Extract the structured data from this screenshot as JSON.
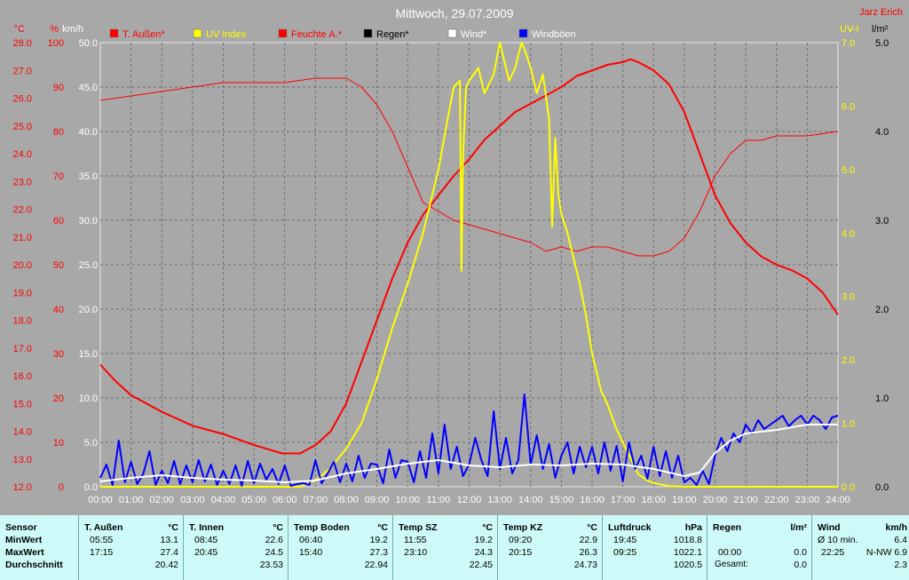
{
  "title": "Mittwoch, 29.07.2009",
  "author": "Jarz Erich",
  "left_axes": {
    "celsius": {
      "unit": "°C",
      "ticks": [
        "28.0",
        "27.0",
        "26.0",
        "25.0",
        "24.0",
        "23.0",
        "22.0",
        "21.0",
        "20.0",
        "19.0",
        "18.0",
        "17.0",
        "16.0",
        "15.0",
        "14.0",
        "13.0",
        "12.0"
      ]
    },
    "percent": {
      "unit": "%",
      "ticks": [
        "100",
        "90",
        "80",
        "70",
        "60",
        "50",
        "40",
        "30",
        "20",
        "10",
        "0"
      ]
    },
    "kmh": {
      "unit": "km/h",
      "ticks": [
        "50.0",
        "45.0",
        "40.0",
        "35.0",
        "30.0",
        "25.0",
        "20.0",
        "15.0",
        "10.0",
        "5.0",
        "0.0"
      ]
    }
  },
  "right_axes": {
    "uvi": {
      "unit": "UV-I",
      "ticks": [
        "7.0",
        "6.0",
        "5.0",
        "4.0",
        "3.0",
        "2.0",
        "1.0",
        "0.0"
      ]
    },
    "rain": {
      "unit": "l/m²",
      "ticks": [
        "5.0",
        "4.0",
        "3.0",
        "2.0",
        "1.0",
        "0.0"
      ]
    }
  },
  "x_ticks": [
    "00:00",
    "01:00",
    "02:00",
    "03:00",
    "04:00",
    "05:00",
    "06:00",
    "07:00",
    "08:00",
    "09:00",
    "10:00",
    "11:00",
    "12:00",
    "13:00",
    "14:00",
    "15:00",
    "16:00",
    "17:00",
    "18:00",
    "19:00",
    "20:00",
    "21:00",
    "22:00",
    "23:00",
    "24:00"
  ],
  "legend": [
    {
      "label": "T. Außen*",
      "color": "#ff0000",
      "swatch": "#ff0000"
    },
    {
      "label": "UV Index",
      "color": "#ffff00",
      "swatch": "#ffff00"
    },
    {
      "label": "Feuchte A.*",
      "color": "#ff0000",
      "swatch": "#ff0000"
    },
    {
      "label": "Regen*",
      "color": "#000000",
      "swatch": "#000000"
    },
    {
      "label": "Wind*",
      "color": "#ffffff",
      "swatch": "#ffffff"
    },
    {
      "label": "Windböen",
      "color": "#ffffff",
      "swatch": "#0000ff"
    }
  ],
  "chart_data": {
    "type": "line",
    "title": "Mittwoch, 29.07.2009",
    "x_unit": "hour",
    "xlim": [
      0,
      24
    ],
    "series": [
      {
        "name": "T. Außen*",
        "axis": "celsius",
        "ylim": [
          12,
          28
        ],
        "color": "#ff0000",
        "x": [
          0,
          0.5,
          1,
          1.5,
          2,
          3,
          4,
          5,
          5.92,
          6.5,
          7,
          7.5,
          8,
          8.5,
          9,
          9.5,
          10,
          10.5,
          11,
          11.5,
          12,
          12.5,
          13,
          13.5,
          14,
          14.5,
          15,
          15.5,
          16,
          16.5,
          17,
          17.25,
          17.5,
          18,
          18.5,
          19,
          19.5,
          20,
          20.5,
          21,
          21.5,
          22,
          22.5,
          23,
          23.5,
          24
        ],
        "values": [
          16.4,
          15.8,
          15.3,
          15.0,
          14.7,
          14.2,
          13.9,
          13.5,
          13.2,
          13.2,
          13.5,
          14.0,
          15.0,
          16.5,
          18.0,
          19.5,
          20.8,
          21.8,
          22.5,
          23.2,
          23.8,
          24.5,
          25.0,
          25.5,
          25.8,
          26.1,
          26.4,
          26.8,
          27.0,
          27.2,
          27.3,
          27.4,
          27.3,
          27.0,
          26.5,
          25.5,
          24.0,
          22.5,
          21.5,
          20.8,
          20.3,
          20.0,
          19.8,
          19.5,
          19.0,
          18.2
        ]
      },
      {
        "name": "Feuchte A.*",
        "axis": "percent",
        "ylim": [
          0,
          100
        ],
        "color": "#ff0000",
        "x": [
          0,
          1,
          2,
          3,
          4,
          5,
          6,
          7,
          8,
          8.5,
          9,
          9.5,
          10,
          10.5,
          11,
          11.5,
          12,
          12.5,
          13,
          13.5,
          14,
          14.5,
          15,
          15.5,
          16,
          16.5,
          17,
          17.5,
          18,
          18.5,
          19,
          19.5,
          20,
          20.5,
          21,
          21.5,
          22,
          23,
          24
        ],
        "values": [
          87,
          88,
          89,
          90,
          91,
          91,
          91,
          92,
          92,
          90,
          86,
          80,
          72,
          64,
          62,
          60,
          59,
          58,
          57,
          56,
          55,
          53,
          54,
          53,
          54,
          54,
          53,
          52,
          52,
          53,
          56,
          62,
          70,
          75,
          78,
          78,
          79,
          79,
          80
        ]
      },
      {
        "name": "UV Index",
        "axis": "uvi",
        "ylim": [
          0,
          7
        ],
        "color": "#ffff00",
        "x": [
          0,
          6.5,
          7,
          7.5,
          8,
          8.5,
          9,
          9.5,
          10,
          10.5,
          11,
          11.3,
          11.5,
          11.7,
          11.75,
          11.8,
          11.9,
          12,
          12.3,
          12.5,
          12.8,
          13,
          13.3,
          13.5,
          13.7,
          13.8,
          14,
          14.2,
          14.4,
          14.6,
          14.7,
          14.8,
          14.9,
          15,
          15.2,
          15.4,
          15.6,
          15.8,
          16,
          16.3,
          16.5,
          16.8,
          17,
          17.3,
          17.5,
          17.8,
          18,
          18.3,
          18.5,
          19,
          19.5,
          20,
          24
        ],
        "values": [
          0,
          0,
          0.1,
          0.3,
          0.6,
          1.0,
          1.7,
          2.5,
          3.2,
          4.0,
          5.0,
          5.8,
          6.3,
          6.4,
          3.4,
          5.2,
          6.3,
          6.4,
          6.6,
          6.2,
          6.5,
          7.0,
          6.4,
          6.6,
          7.0,
          6.9,
          6.6,
          6.2,
          6.5,
          5.8,
          4.1,
          5.5,
          4.6,
          4.3,
          4.0,
          3.6,
          3.2,
          2.7,
          2.1,
          1.5,
          1.3,
          0.9,
          0.7,
          0.4,
          0.2,
          0.1,
          0.06,
          0.03,
          0.01,
          0,
          0,
          0,
          0
        ]
      },
      {
        "name": "Wind*",
        "axis": "kmh",
        "ylim": [
          0,
          50
        ],
        "color": "#ffffff",
        "x": [
          0,
          1,
          2,
          3,
          4,
          5,
          6,
          7,
          8,
          9,
          10,
          11,
          12,
          13,
          14,
          15,
          16,
          17,
          18,
          19,
          19.5,
          20,
          20.5,
          21,
          22,
          23,
          24
        ],
        "values": [
          0.6,
          1.0,
          1.3,
          1.0,
          0.8,
          0.7,
          0.5,
          0.7,
          1.5,
          2.0,
          2.6,
          3.0,
          2.4,
          2.2,
          2.5,
          2.4,
          2.6,
          2.5,
          2.0,
          1.2,
          1.6,
          3.8,
          5.2,
          6.0,
          6.4,
          7.0,
          7.0
        ]
      },
      {
        "name": "Windböen",
        "axis": "kmh",
        "ylim": [
          0,
          50
        ],
        "color": "#0000ff",
        "x": [
          0,
          0.2,
          0.4,
          0.6,
          0.8,
          1,
          1.2,
          1.4,
          1.6,
          1.8,
          2,
          2.2,
          2.4,
          2.6,
          2.8,
          3,
          3.2,
          3.4,
          3.6,
          3.8,
          4,
          4.2,
          4.4,
          4.6,
          4.8,
          5,
          5.2,
          5.4,
          5.6,
          5.8,
          6,
          6.2,
          6.4,
          6.6,
          6.8,
          7,
          7.2,
          7.4,
          7.6,
          7.8,
          8,
          8.2,
          8.4,
          8.6,
          8.8,
          9,
          9.2,
          9.4,
          9.6,
          9.8,
          10,
          10.2,
          10.4,
          10.6,
          10.8,
          11,
          11.2,
          11.4,
          11.6,
          11.8,
          12,
          12.2,
          12.4,
          12.6,
          12.8,
          13,
          13.2,
          13.4,
          13.6,
          13.8,
          14,
          14.2,
          14.4,
          14.6,
          14.8,
          15,
          15.2,
          15.4,
          15.6,
          15.8,
          16,
          16.2,
          16.4,
          16.6,
          16.8,
          17,
          17.2,
          17.4,
          17.6,
          17.8,
          18,
          18.2,
          18.4,
          18.6,
          18.8,
          19,
          19.2,
          19.4,
          19.6,
          19.8,
          20,
          20.2,
          20.4,
          20.6,
          20.8,
          21,
          21.2,
          21.4,
          21.6,
          21.8,
          22,
          22.2,
          22.4,
          22.6,
          22.8,
          23,
          23.2,
          23.4,
          23.6,
          23.8,
          24
        ],
        "values": [
          1.0,
          2.5,
          0.2,
          5.2,
          0.5,
          2.8,
          0.3,
          1.5,
          4.0,
          0.2,
          1.8,
          0.4,
          2.9,
          0.3,
          2.4,
          0.5,
          3.0,
          0.6,
          2.5,
          0.2,
          1.8,
          0.3,
          2.4,
          0.1,
          2.9,
          0.4,
          2.6,
          0.8,
          2.0,
          0.3,
          2.4,
          0.1,
          0.3,
          0.4,
          0.2,
          3.0,
          0.4,
          1.5,
          2.8,
          0.5,
          2.6,
          0.6,
          3.5,
          1.0,
          2.6,
          2.5,
          0.4,
          4.2,
          1.0,
          3.0,
          2.8,
          0.5,
          4.0,
          1.0,
          6.0,
          1.5,
          7.0,
          2.0,
          4.5,
          1.2,
          2.5,
          5.5,
          3.0,
          1.2,
          8.5,
          2.0,
          5.5,
          1.5,
          3.0,
          10.4,
          2.5,
          5.8,
          2.0,
          4.8,
          1.0,
          3.5,
          5.0,
          1.5,
          4.5,
          2.2,
          4.5,
          1.5,
          5.0,
          1.8,
          4.6,
          0.6,
          5.0,
          2.0,
          3.5,
          0.9,
          4.5,
          1.2,
          4.0,
          1.0,
          3.5,
          0.5,
          1.0,
          0.2,
          1.8,
          0.3,
          3.5,
          5.5,
          4.0,
          6.0,
          5.0,
          7.0,
          6.0,
          7.5,
          6.5,
          7.0,
          7.5,
          8.0,
          6.8,
          7.5,
          8.0,
          7.0,
          8.0,
          7.5,
          6.5,
          7.8,
          8.0
        ]
      }
    ]
  },
  "panel": {
    "sensor": {
      "title": "Sensor",
      "rows": [
        "MinWert",
        "MaxWert",
        "Durchschnitt"
      ]
    },
    "columns": [
      {
        "name": "T. Außen",
        "unit": "°C",
        "min_time": "05:55",
        "min_val": "13.1",
        "max_time": "17:15",
        "max_val": "27.4",
        "avg": "20.42"
      },
      {
        "name": "T. Innen",
        "unit": "°C",
        "min_time": "08:45",
        "min_val": "22.6",
        "max_time": "20:45",
        "max_val": "24.5",
        "avg": "23.53"
      },
      {
        "name": "Temp Boden",
        "unit": "°C",
        "min_time": "06:40",
        "min_val": "19.2",
        "max_time": "15:40",
        "max_val": "27.3",
        "avg": "22.94"
      },
      {
        "name": "Temp SZ",
        "unit": "°C",
        "min_time": "11:55",
        "min_val": "19.2",
        "max_time": "23:10",
        "max_val": "24.3",
        "avg": "22.45"
      },
      {
        "name": "Temp KZ",
        "unit": "°C",
        "min_time": "09:20",
        "min_val": "22.9",
        "max_time": "20:15",
        "max_val": "26.3",
        "avg": "24.73"
      },
      {
        "name": "Luftdruck",
        "unit": "hPa",
        "min_time": "19:45",
        "min_val": "1018.8",
        "max_time": "09:25",
        "max_val": "1022.1",
        "avg": "1020.5"
      }
    ],
    "regen": {
      "name": "Regen",
      "unit": "l/m²",
      "r1_time": "00:00",
      "r1_val": "0.0",
      "r2_time": "Gesamt:",
      "r2_val": "0.0"
    },
    "wind": {
      "name": "Wind",
      "unit": "km/h",
      "r1_time": "Ø 10 min.",
      "r1_val": "6.4",
      "r2_time": "22:25",
      "r2_val": "N-NW 6.9",
      "r3_val": "2.3"
    }
  }
}
